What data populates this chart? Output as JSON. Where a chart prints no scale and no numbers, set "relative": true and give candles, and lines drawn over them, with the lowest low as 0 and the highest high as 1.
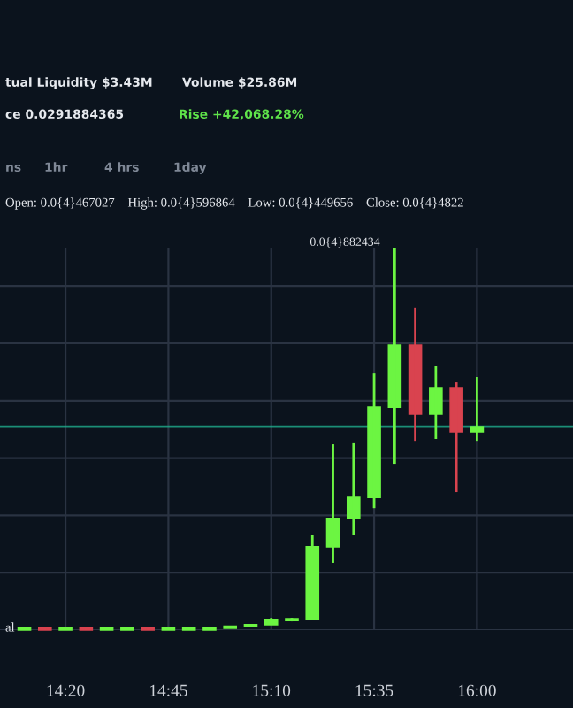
{
  "chart_data": {
    "type": "candlestick",
    "relative": true,
    "x": [
      14.1667,
      14.25,
      14.3333,
      14.4167,
      14.5,
      14.5833,
      14.6667,
      14.75,
      14.8333,
      14.9167,
      15.0,
      15.0833,
      15.1667,
      15.25,
      15.3333,
      15.4167,
      15.5,
      15.5833,
      15.6667,
      15.75,
      15.8333,
      15.9167,
      16.0
    ],
    "ohlc": [
      [
        0.0,
        0.005,
        0.0,
        0.005
      ],
      [
        0.005,
        0.005,
        0.0,
        0.0
      ],
      [
        0.0,
        0.005,
        0.0,
        0.005
      ],
      [
        0.005,
        0.005,
        0.0,
        0.0
      ],
      [
        0.0,
        0.005,
        0.0,
        0.005
      ],
      [
        0.0,
        0.005,
        0.0,
        0.005
      ],
      [
        0.005,
        0.005,
        0.0,
        0.0
      ],
      [
        0.0,
        0.005,
        0.0,
        0.005
      ],
      [
        0.0,
        0.005,
        0.0,
        0.005
      ],
      [
        0.0,
        0.005,
        0.0,
        0.005
      ],
      [
        0.005,
        0.01,
        0.005,
        0.01
      ],
      [
        0.01,
        0.014,
        0.01,
        0.014
      ],
      [
        0.014,
        0.032,
        0.014,
        0.028
      ],
      [
        0.025,
        0.032,
        0.023,
        0.03
      ],
      [
        0.028,
        0.25,
        0.028,
        0.218
      ],
      [
        0.218,
        0.486,
        0.176,
        0.292
      ],
      [
        0.292,
        0.491,
        0.25,
        0.347
      ],
      [
        0.347,
        0.671,
        0.319,
        0.583
      ],
      [
        0.583,
        1,
        0.435,
        0.745
      ],
      [
        0.745,
        0.843,
        0.495,
        0.565
      ],
      [
        0.565,
        0.69,
        0.5,
        0.634
      ],
      [
        0.634,
        0.648,
        0.361,
        0.519
      ],
      [
        0.519,
        0.662,
        0.495,
        0.532
      ]
    ],
    "colors": [
      "#6cf542",
      "#d9434f",
      "#6cf542",
      "#d9434f",
      "#6cf542",
      "#6cf542",
      "#d9434f",
      "#6cf542",
      "#6cf542",
      "#6cf542",
      "#6cf542",
      "#6cf542",
      "#6cf542",
      "#6cf542",
      "#6cf542",
      "#6cf542",
      "#6cf542",
      "#6cf542",
      "#6cf542",
      "#d9434f",
      "#6cf542",
      "#d9434f",
      "#6cf542"
    ],
    "xlim": [
      14.068,
      16.389
    ],
    "xticks": [
      {
        "value": 14.3333,
        "label": "14:20"
      },
      {
        "value": 14.75,
        "label": "14:45"
      },
      {
        "value": 15.1667,
        "label": "15:10"
      },
      {
        "value": 15.5833,
        "label": "15:35"
      },
      {
        "value": 16.0,
        "label": "16:00"
      }
    ],
    "grid": true,
    "tick_labels": "x",
    "ref_lines": [
      {
        "axis": "y",
        "value": 0.532,
        "color": "#1fae8d"
      }
    ],
    "annotations": [
      "tual Liquidity $3.43M",
      "Volume $25.86M",
      "ce 0.0291884365",
      "Rise +42,068.28%",
      "ns",
      "1hr",
      "4 hrs",
      "1day",
      "Open: 0.0{4}467027    High: 0.0{4}596864    Low: 0.0{4}449656    Close: 0.0{4}4822",
      "al",
      "0.0{4}882434"
    ]
  }
}
